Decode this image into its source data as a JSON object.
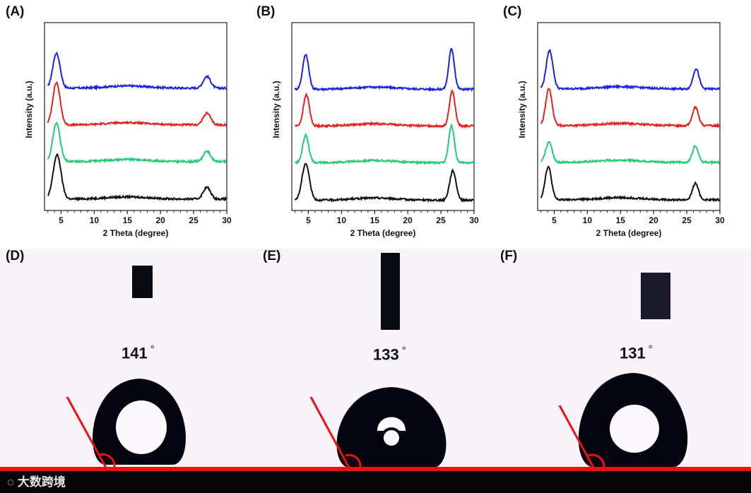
{
  "panels": {
    "A": "(A)",
    "B": "(B)",
    "C": "(C)",
    "D": "(D)",
    "E": "(E)",
    "F": "(F)"
  },
  "angles": {
    "D": "141",
    "E": "133",
    "F": "131",
    "degree_symbol": "°"
  },
  "watermark": "大数跨境",
  "colors": {
    "blue": "#1a22e6",
    "red": "#e8201c",
    "green": "#22cc77",
    "black": "#111111",
    "contact_line": "#ee1111",
    "drop": "#050510",
    "needle": "#0a0a12"
  },
  "chart_data": [
    {
      "type": "line",
      "panel": "A",
      "xlabel": "2 Theta (degree)",
      "ylabel": "Intensity (a.u.)",
      "xlim": [
        2.5,
        30
      ],
      "xticks": [
        5,
        10,
        15,
        20,
        25,
        30
      ],
      "series": [
        {
          "name": "blue",
          "color": "#1a22e6",
          "offset": 3.0,
          "peaks": [
            {
              "x": 4.3,
              "h": 0.95,
              "w": 0.55
            },
            {
              "x": 27.0,
              "h": 0.32,
              "w": 0.55
            }
          ],
          "bg": 0.1
        },
        {
          "name": "red",
          "color": "#e8201c",
          "offset": 2.0,
          "peaks": [
            {
              "x": 4.3,
              "h": 1.15,
              "w": 0.55
            },
            {
              "x": 27.0,
              "h": 0.32,
              "w": 0.55
            }
          ],
          "bg": 0.1
        },
        {
          "name": "green",
          "color": "#22cc77",
          "offset": 1.0,
          "peaks": [
            {
              "x": 4.3,
              "h": 1.05,
              "w": 0.55
            },
            {
              "x": 27.0,
              "h": 0.28,
              "w": 0.55
            }
          ],
          "bg": 0.1
        },
        {
          "name": "black",
          "color": "#111111",
          "offset": 0.0,
          "peaks": [
            {
              "x": 4.4,
              "h": 1.2,
              "w": 0.6
            },
            {
              "x": 27.0,
              "h": 0.32,
              "w": 0.55
            }
          ],
          "bg": 0.08
        }
      ]
    },
    {
      "type": "line",
      "panel": "B",
      "xlabel": "2 Theta (degree)",
      "ylabel": "Intensity (a.u.)",
      "xlim": [
        2.5,
        30
      ],
      "xticks": [
        5,
        10,
        15,
        20,
        25,
        30
      ],
      "series": [
        {
          "name": "blue",
          "color": "#1a22e6",
          "offset": 3.0,
          "peaks": [
            {
              "x": 4.6,
              "h": 0.95,
              "w": 0.45
            },
            {
              "x": 26.6,
              "h": 1.1,
              "w": 0.42
            }
          ],
          "bg": 0.07
        },
        {
          "name": "red",
          "color": "#e8201c",
          "offset": 2.0,
          "peaks": [
            {
              "x": 4.7,
              "h": 0.85,
              "w": 0.45
            },
            {
              "x": 26.7,
              "h": 0.95,
              "w": 0.42
            }
          ],
          "bg": 0.07
        },
        {
          "name": "green",
          "color": "#22cc77",
          "offset": 1.0,
          "peaks": [
            {
              "x": 4.6,
              "h": 0.75,
              "w": 0.45
            },
            {
              "x": 26.6,
              "h": 1.0,
              "w": 0.42
            }
          ],
          "bg": 0.07
        },
        {
          "name": "black",
          "color": "#111111",
          "offset": 0.0,
          "peaks": [
            {
              "x": 4.6,
              "h": 1.0,
              "w": 0.55
            },
            {
              "x": 26.8,
              "h": 0.8,
              "w": 0.48
            }
          ],
          "bg": 0.05
        }
      ]
    },
    {
      "type": "line",
      "panel": "C",
      "xlabel": "2 Theta (degree)",
      "ylabel": "Intensity (a.u.)",
      "xlim": [
        2.5,
        30
      ],
      "xticks": [
        5,
        10,
        15,
        20,
        25,
        30
      ],
      "series": [
        {
          "name": "blue",
          "color": "#1a22e6",
          "offset": 3.0,
          "peaks": [
            {
              "x": 4.3,
              "h": 1.05,
              "w": 0.5
            },
            {
              "x": 26.4,
              "h": 0.55,
              "w": 0.45
            }
          ],
          "bg": 0.08
        },
        {
          "name": "red",
          "color": "#e8201c",
          "offset": 2.0,
          "peaks": [
            {
              "x": 4.2,
              "h": 1.0,
              "w": 0.48
            },
            {
              "x": 26.3,
              "h": 0.5,
              "w": 0.45
            }
          ],
          "bg": 0.08
        },
        {
          "name": "green",
          "color": "#22cc77",
          "offset": 1.0,
          "peaks": [
            {
              "x": 4.2,
              "h": 0.55,
              "w": 0.48
            },
            {
              "x": 26.3,
              "h": 0.45,
              "w": 0.45
            }
          ],
          "bg": 0.08
        },
        {
          "name": "black",
          "color": "#111111",
          "offset": 0.0,
          "peaks": [
            {
              "x": 4.1,
              "h": 0.9,
              "w": 0.48
            },
            {
              "x": 26.3,
              "h": 0.45,
              "w": 0.45
            }
          ],
          "bg": 0.06
        }
      ]
    }
  ]
}
